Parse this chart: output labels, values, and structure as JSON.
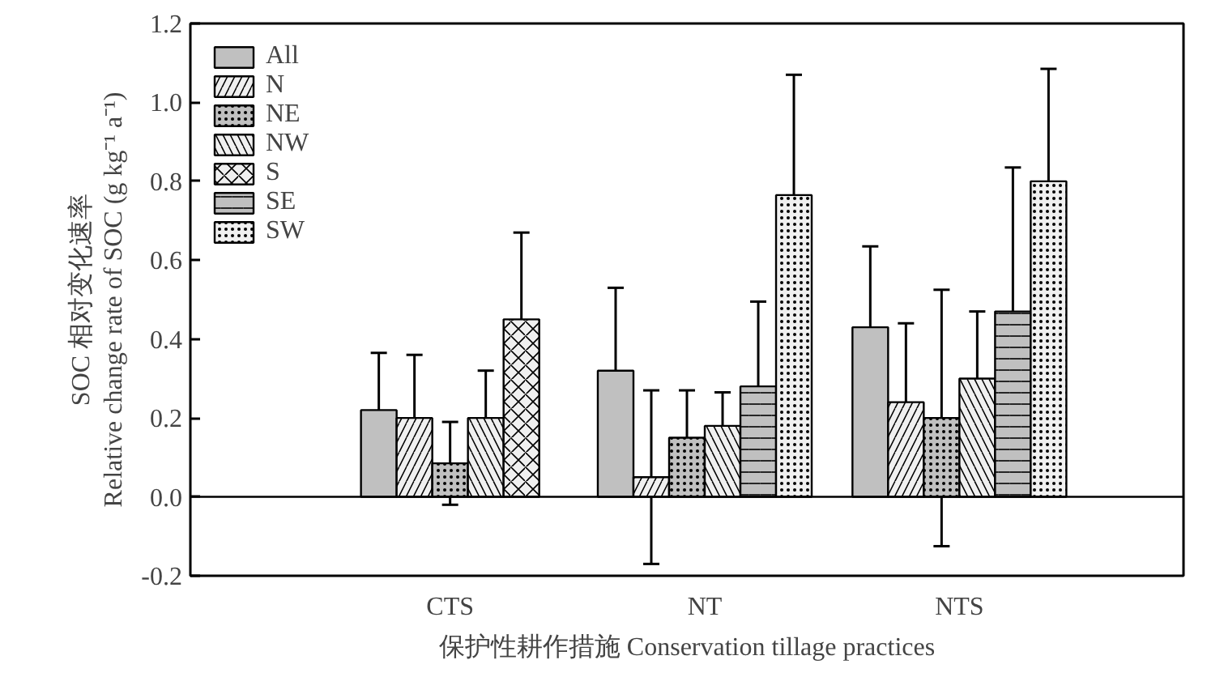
{
  "chart_data": {
    "type": "bar",
    "xlabel": "保护性耕作措施 Conservation tillage practices",
    "ylabel": "SOC 相对变化速率\nRelative change rate of SOC (g kg⁻¹ a⁻¹)",
    "categories": [
      "CTS",
      "NT",
      "NTS"
    ],
    "series": [
      {
        "name": "All",
        "color": "#c0c0c0",
        "values": [
          0.22,
          0.32,
          0.43
        ],
        "errors": [
          0.145,
          0.21,
          0.205
        ]
      },
      {
        "name": "N",
        "color": "#f0f0f0",
        "values": [
          0.2,
          0.05,
          0.24
        ],
        "errors": [
          0.16,
          0.22,
          0.2
        ]
      },
      {
        "name": "NE",
        "color": "#c0c0c0",
        "values": [
          0.085,
          0.15,
          0.2
        ],
        "errors": [
          0.105,
          0.12,
          0.325
        ]
      },
      {
        "name": "NW",
        "color": "#f0f0f0",
        "values": [
          0.2,
          0.18,
          0.3
        ],
        "errors": [
          0.12,
          0.085,
          0.17
        ]
      },
      {
        "name": "S",
        "color": "#f0f0f0",
        "values": [
          0.45,
          null,
          null
        ],
        "errors": [
          0.22,
          null,
          null
        ]
      },
      {
        "name": "SE",
        "color": "#c0c0c0",
        "values": [
          null,
          0.28,
          0.47
        ],
        "errors": [
          null,
          0.215,
          0.365
        ]
      },
      {
        "name": "SW",
        "color": "#f0f0f0",
        "values": [
          null,
          0.765,
          0.8
        ],
        "errors": [
          null,
          0.305,
          0.285
        ]
      }
    ],
    "ylim": [
      -0.2,
      1.2
    ],
    "yticks": [
      -0.2,
      {
        "value": 0.0,
        "label": "0.0"
      },
      0.2,
      0.4,
      0.6,
      0.8,
      {
        "value": 1.0,
        "label": "1.0"
      },
      1.2
    ],
    "ref_lines": [
      {
        "axis": "y",
        "value": 0
      }
    ],
    "grid": false,
    "legend": "top left"
  }
}
